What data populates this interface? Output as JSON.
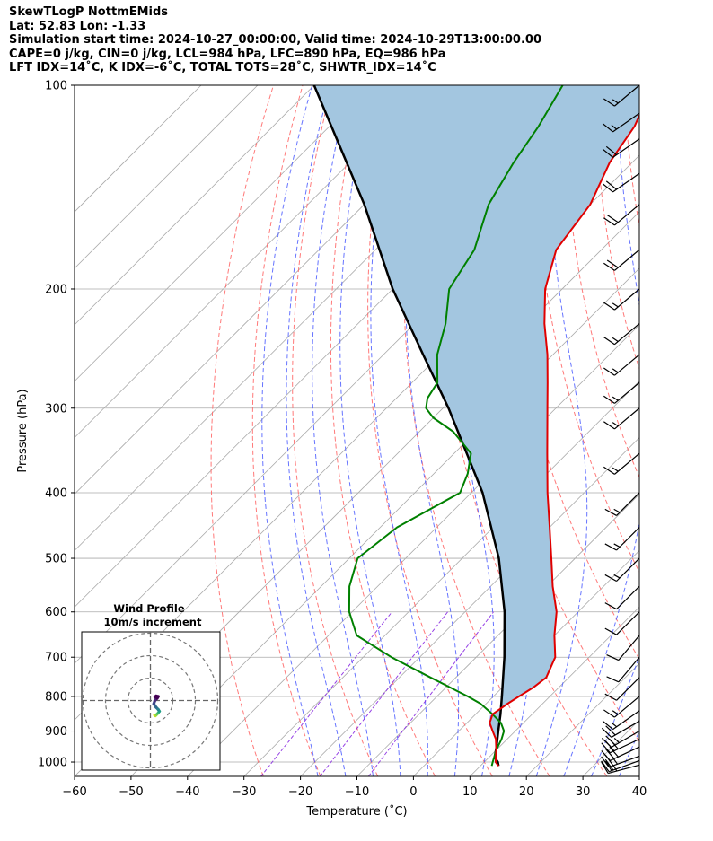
{
  "header": {
    "line1": "SkewTLogP NottmEMids",
    "line2": "Lat: 52.83   Lon: -1.33",
    "line3": "Simulation start time: 2024-10-27_00:00:00, Valid time: 2024-10-29T13:00:00.00",
    "line4": "CAPE=0 j/kg, CIN=0 j/kg, LCL=984 hPa, LFC=890 hPa, EQ=986 hPa",
    "line5": "LFT IDX=14˚C, K IDX=-6˚C, TOTAL TOTS=28˚C, SHWTR_IDX=14˚C"
  },
  "chart_data": {
    "type": "line",
    "subtype": "skew-t log-p",
    "xlabel": "Temperature (˚C)",
    "ylabel": "Pressure (hPa)",
    "xlim": [
      -60,
      40
    ],
    "ylim": [
      1050,
      100
    ],
    "y_scale": "log",
    "x_ticks": [
      -60,
      -50,
      -40,
      -30,
      -20,
      -10,
      0,
      10,
      20,
      30,
      40
    ],
    "y_ticks": [
      100,
      200,
      300,
      400,
      500,
      600,
      700,
      800,
      900,
      1000
    ],
    "grid": true,
    "colors": {
      "temperature": "#e00000",
      "dewpoint": "#008000",
      "parcel": "#000000",
      "shade": "#a3c6e0",
      "dry_adiabats": "#ff6a6a",
      "moist_adiabats": "#4b5cff",
      "mixing_ratio": "#8a2be2",
      "isotherms": "#aaaaaa"
    },
    "series": [
      {
        "key": "temperature",
        "pressure": [
          1013,
          1000,
          960,
          925,
          900,
          875,
          850,
          820,
          800,
          775,
          750,
          700,
          650,
          600,
          550,
          500,
          450,
          400,
          350,
          300,
          275,
          250,
          225,
          200,
          175,
          150,
          130,
          115,
          100
        ],
        "values": [
          13.2,
          12.0,
          10.0,
          8.0,
          6.0,
          4.0,
          3.0,
          3.8,
          4.5,
          5.5,
          6.0,
          4.0,
          0.0,
          -3.8,
          -9.0,
          -14.2,
          -20.0,
          -26.5,
          -33.5,
          -41.5,
          -46.0,
          -51.0,
          -57.0,
          -63.0,
          -68.0,
          -70.0,
          -74.0,
          -76.0,
          -80.0
        ]
      },
      {
        "key": "dewpoint",
        "pressure": [
          1013,
          1000,
          960,
          925,
          900,
          875,
          850,
          820,
          800,
          750,
          700,
          650,
          600,
          550,
          500,
          450,
          400,
          375,
          350,
          325,
          310,
          300,
          290,
          275,
          250,
          225,
          200,
          175,
          150,
          130,
          115,
          100
        ],
        "values": [
          12.0,
          11.5,
          10.0,
          9.0,
          8.0,
          6.0,
          3.0,
          -1.0,
          -4.5,
          -14.5,
          -25.0,
          -35.0,
          -40.5,
          -45.0,
          -48.5,
          -47.0,
          -42.0,
          -44.0,
          -47.0,
          -54.0,
          -60.0,
          -63.0,
          -64.5,
          -65.5,
          -70.5,
          -74.5,
          -80.0,
          -82.5,
          -88.0,
          -91.0,
          -93.0,
          -96.0
        ]
      },
      {
        "key": "parcel",
        "pressure": [
          1013,
          1000,
          984,
          950,
          900,
          850,
          800,
          700,
          600,
          500,
          400,
          300,
          250,
          200,
          150,
          100
        ],
        "values": [
          13.2,
          12.4,
          11.0,
          9.5,
          7.0,
          4.4,
          1.5,
          -5.0,
          -13.0,
          -23.5,
          -38.0,
          -59.0,
          -73.0,
          -90.0,
          -110.0,
          -140.0
        ]
      }
    ],
    "wind_barbs": {
      "pressure": [
        1010,
        995,
        980,
        950,
        925,
        900,
        870,
        840,
        800,
        750,
        700,
        650,
        600,
        550,
        500,
        450,
        400,
        350,
        300,
        275,
        250,
        225,
        200,
        175,
        150,
        135,
        120,
        110,
        100
      ],
      "speed_kt": [
        25,
        20,
        25,
        30,
        30,
        25,
        20,
        15,
        15,
        10,
        10,
        10,
        10,
        10,
        15,
        15,
        15,
        15,
        15,
        15,
        15,
        15,
        15,
        20,
        20,
        20,
        20,
        15,
        15
      ],
      "direction_deg": [
        255,
        250,
        250,
        245,
        245,
        240,
        240,
        235,
        230,
        225,
        220,
        220,
        225,
        225,
        225,
        225,
        225,
        230,
        230,
        230,
        230,
        230,
        230,
        230,
        230,
        235,
        235,
        235,
        230
      ]
    },
    "inset": {
      "title": "Wind Profile",
      "subtitle": "10m/s increment",
      "rings_ms": [
        10,
        20,
        30
      ],
      "hodograph_uv": [
        [
          1.8,
          -6.5
        ],
        [
          2.2,
          -6.8
        ],
        [
          2.8,
          -6.2
        ],
        [
          3.5,
          -5.5
        ],
        [
          4.0,
          -4.8
        ],
        [
          3.5,
          -4.0
        ],
        [
          2.5,
          -3.0
        ],
        [
          1.5,
          -1.5
        ],
        [
          2.0,
          0.0
        ],
        [
          3.0,
          1.0
        ],
        [
          3.5,
          1.8
        ],
        [
          2.5,
          2.0
        ],
        [
          2.0,
          1.5
        ]
      ]
    }
  }
}
